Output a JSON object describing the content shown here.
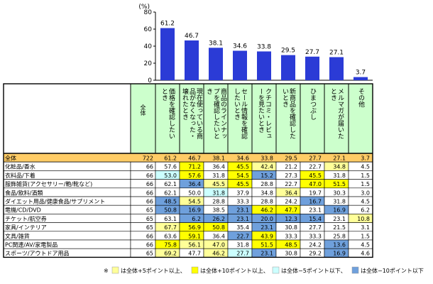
{
  "chart_data": {
    "type": "bar",
    "unit_label": "(%)",
    "ylim": [
      0,
      80
    ],
    "y_ticks": [
      "0",
      "20",
      "40",
      "60",
      "80"
    ],
    "categories": [
      "価格を確認したいとき",
      "現在使っている商品がなくなった・壊れたとき",
      "商品のラインナップを確認したいとき",
      "セール情報を確認したいとき",
      "クチコミ・レビューを見たいとき",
      "新商品を確認したいとき",
      "ひまつぶし",
      "メルマガが届いたとき",
      "その他"
    ],
    "values": [
      61.2,
      46.7,
      38.1,
      34.6,
      33.8,
      29.5,
      27.7,
      27.1,
      3.7
    ],
    "bar_color": "#2b3bd6",
    "table": {
      "n_header": "全体",
      "total_row": {
        "label": "全体",
        "n": "722",
        "values": [
          "61.2",
          "46.7",
          "38.1",
          "34.6",
          "33.8",
          "29.5",
          "27.7",
          "27.1",
          "3.7"
        ]
      },
      "rows": [
        {
          "label": "化粧品/香水",
          "n": "66",
          "values": [
            "57.6",
            "71.2",
            "36.4",
            "45.5",
            "42.4",
            "21.2",
            "22.7",
            "34.8",
            "4.5"
          ],
          "highlights": [
            "",
            "y10",
            "",
            "y10",
            "y5",
            "",
            "",
            "y5",
            ""
          ]
        },
        {
          "label": "衣料品/下着",
          "n": "66",
          "values": [
            "53.0",
            "57.6",
            "31.8",
            "54.5",
            "15.2",
            "27.3",
            "45.5",
            "31.8",
            "1.5"
          ],
          "highlights": [
            "b5",
            "y10",
            "",
            "y10",
            "b10",
            "",
            "y10",
            "",
            ""
          ]
        },
        {
          "label": "服飾雑貨(アクセサリー/鞄/靴など)",
          "n": "66",
          "values": [
            "62.1",
            "36.4",
            "45.5",
            "45.5",
            "28.8",
            "22.7",
            "47.0",
            "51.5",
            "1.5"
          ],
          "highlights": [
            "",
            "b10",
            "y5",
            "y10",
            "",
            "",
            "y10",
            "y10",
            ""
          ]
        },
        {
          "label": "食品/飲料/酒類",
          "n": "66",
          "values": [
            "62.1",
            "50.0",
            "31.8",
            "37.9",
            "34.8",
            "36.4",
            "19.7",
            "30.3",
            "3.0"
          ],
          "highlights": [
            "",
            "",
            "b5",
            "",
            "",
            "y5",
            "",
            "",
            ""
          ]
        },
        {
          "label": "ダイエット用品/健康食品/サプリメント",
          "n": "66",
          "values": [
            "48.5",
            "54.5",
            "28.8",
            "33.3",
            "28.8",
            "24.2",
            "16.7",
            "31.8",
            "4.5"
          ],
          "highlights": [
            "b10",
            "y5",
            "",
            "",
            "",
            "",
            "b10",
            "",
            ""
          ]
        },
        {
          "label": "電機/CD/DVD",
          "n": "65",
          "values": [
            "50.8",
            "16.9",
            "38.5",
            "23.1",
            "46.2",
            "47.7",
            "23.1",
            "16.9",
            "6.2"
          ],
          "highlights": [
            "b10",
            "b10",
            "",
            "b10",
            "y10",
            "y10",
            "",
            "b10",
            ""
          ]
        },
        {
          "label": "チケット/航空券",
          "n": "65",
          "values": [
            "63.1",
            "6.2",
            "26.2",
            "23.1",
            "20.0",
            "12.3",
            "15.4",
            "23.1",
            "10.8"
          ],
          "highlights": [
            "",
            "b10",
            "b10",
            "b10",
            "b10",
            "b10",
            "b10",
            "",
            "y5"
          ]
        },
        {
          "label": "家具/インテリア",
          "n": "65",
          "values": [
            "67.7",
            "56.9",
            "50.8",
            "35.4",
            "23.1",
            "30.8",
            "27.7",
            "21.5",
            "3.1"
          ],
          "highlights": [
            "y5",
            "y10",
            "y10",
            "",
            "b10",
            "",
            "",
            "",
            ""
          ]
        },
        {
          "label": "文具/雑貨",
          "n": "66",
          "values": [
            "63.6",
            "59.1",
            "36.4",
            "22.7",
            "43.9",
            "33.3",
            "33.3",
            "25.8",
            "1.5"
          ],
          "highlights": [
            "",
            "y10",
            "",
            "b10",
            "y10",
            "",
            "",
            "",
            ""
          ]
        },
        {
          "label": "PC関連/AV/家電製品",
          "n": "66",
          "values": [
            "75.8",
            "56.1",
            "47.0",
            "31.8",
            "51.5",
            "48.5",
            "24.2",
            "13.6",
            "4.5"
          ],
          "highlights": [
            "y10",
            "y5",
            "y5",
            "",
            "y10",
            "y10",
            "",
            "b10",
            ""
          ]
        },
        {
          "label": "スポーツ/アウトドア用品",
          "n": "65",
          "values": [
            "69.2",
            "47.7",
            "46.2",
            "27.7",
            "23.1",
            "30.8",
            "29.2",
            "16.9",
            "4.6"
          ],
          "highlights": [
            "y5",
            "",
            "y5",
            "b5",
            "b10",
            "",
            "",
            "b10",
            ""
          ]
        }
      ]
    },
    "legend": [
      {
        "key": "ly5",
        "text": "は全体+5ポイント以上、"
      },
      {
        "key": "y10",
        "text": "は全体+10ポイント以上、"
      },
      {
        "key": "lb5",
        "text": "は全体−5ポイント以下、"
      },
      {
        "key": "b10",
        "text": "は全体−10ポイント以下"
      }
    ],
    "legend_prefix": "※",
    "colors": {
      "header_green": "#ccffcc",
      "total_row": "#ffcc66",
      "y5": "#ffff99",
      "y10": "#ffff00",
      "b5": "#ccffff",
      "b10": "#6fa0dc"
    }
  }
}
